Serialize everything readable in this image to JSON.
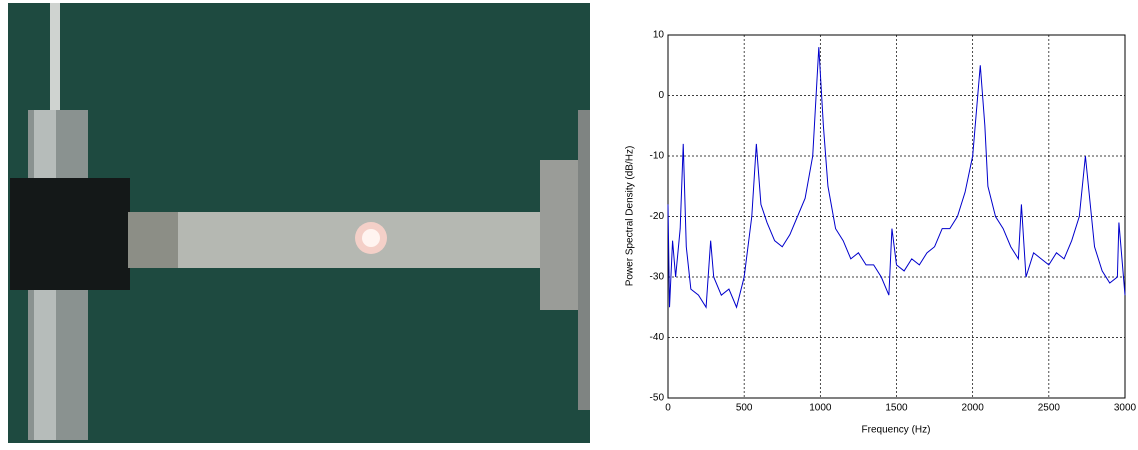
{
  "chart_data": {
    "type": "line",
    "xlabel": "Frequency (Hz)",
    "ylabel": "Power Spectral Density (dB/Hz)",
    "xlim": [
      0,
      3000
    ],
    "xticks": [
      0,
      500,
      1000,
      1500,
      2000,
      2500,
      3000
    ],
    "ylim": [
      -50,
      10
    ],
    "yticks": [
      -50,
      -40,
      -30,
      -20,
      -10,
      0,
      10
    ],
    "grid": true,
    "series": [
      {
        "color": "#0000cc",
        "x": [
          0,
          10,
          30,
          50,
          80,
          100,
          120,
          150,
          200,
          250,
          280,
          300,
          350,
          400,
          450,
          500,
          550,
          580,
          610,
          650,
          700,
          750,
          800,
          850,
          900,
          950,
          990,
          1020,
          1050,
          1100,
          1150,
          1200,
          1250,
          1300,
          1350,
          1400,
          1450,
          1470,
          1500,
          1550,
          1600,
          1650,
          1700,
          1750,
          1800,
          1850,
          1900,
          1950,
          2000,
          2050,
          2080,
          2100,
          2150,
          2200,
          2250,
          2300,
          2320,
          2350,
          2400,
          2450,
          2500,
          2550,
          2600,
          2650,
          2700,
          2740,
          2780,
          2800,
          2850,
          2900,
          2950,
          2960,
          3000
        ],
        "values": [
          -18,
          -35,
          -24,
          -30,
          -22,
          -8,
          -25,
          -32,
          -33,
          -35,
          -24,
          -30,
          -33,
          -32,
          -35,
          -30,
          -20,
          -8,
          -18,
          -21,
          -24,
          -25,
          -23,
          -20,
          -17,
          -10,
          8,
          -5,
          -15,
          -22,
          -24,
          -27,
          -26,
          -28,
          -28,
          -30,
          -33,
          -22,
          -28,
          -29,
          -27,
          -28,
          -26,
          -25,
          -22,
          -22,
          -20,
          -16,
          -10,
          5,
          -5,
          -15,
          -20,
          -22,
          -25,
          -27,
          -18,
          -30,
          -26,
          -27,
          -28,
          -26,
          -27,
          -24,
          -20,
          -10,
          -20,
          -25,
          -29,
          -31,
          -30,
          -21,
          -33
        ]
      }
    ]
  }
}
